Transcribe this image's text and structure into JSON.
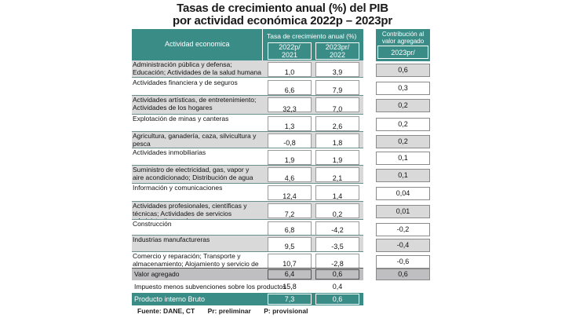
{
  "title_line1": "Tasas de crecimiento anual (%) del PIB",
  "title_line2": "por actividad económica 2022p – 2023pr",
  "header": {
    "activity": "Actividad economica",
    "growth": "Tasa de crecimiento anual (%)",
    "col1": "2022p/ 2021",
    "col2": "2023pr/ 2022",
    "contrib": "Contribución al valor agregado",
    "contrib_year": "2023pr/"
  },
  "rows": [
    {
      "label": "Administración pública y defensa; Educación; Actividades de la salud humana",
      "v1": "1,0",
      "v2": "3,9",
      "c": "0,6"
    },
    {
      "label": "Actividades financiera y de seguros",
      "v1": "6,6",
      "v2": "7,9",
      "c": "0,3"
    },
    {
      "label": "Actividades artísticas, de entretenimiento; Actividades de los hogares",
      "v1": "32,3",
      "v2": "7,0",
      "c": "0,2"
    },
    {
      "label": "Explotación de minas y canteras",
      "v1": "1,3",
      "v2": "2,6",
      "c": "0,2"
    },
    {
      "label": "Agricultura, ganadería, caza, silvicultura y pesca",
      "v1": "-0,8",
      "v2": "1,8",
      "c": "0,2"
    },
    {
      "label": "Actividades inmobiliarias",
      "v1": "1,9",
      "v2": "1,9",
      "c": "0,1"
    },
    {
      "label": "Suministro de electricidad, gas, vapor y aire acondicionado; Distribución de agua",
      "v1": "4,6",
      "v2": "2,1",
      "c": "0,1"
    },
    {
      "label": "Información y comunicaciones",
      "v1": "12,4",
      "v2": "1,4",
      "c": "0,04"
    },
    {
      "label": "Actividades profesionales, científicas y técnicas; Actividades de servicios administrativos y de apoyo",
      "v1": "7,2",
      "v2": "0,2",
      "c": "0,01"
    },
    {
      "label": "Construcción",
      "v1": "6,8",
      "v2": "-4,2",
      "c": "-0,2"
    },
    {
      "label": "Industrias manufactureras",
      "v1": "9,5",
      "v2": "-3,5",
      "c": "-0,4"
    },
    {
      "label": "Comercio y reparación; Transporte y almacenamiento; Alojamiento y servicio de comida",
      "v1": "10,7",
      "v2": "-2,8",
      "c": "-0,6"
    }
  ],
  "valor_agregado": {
    "label": "Valor agregado",
    "v1": "6,4",
    "v2": "0,6",
    "c": "0,6"
  },
  "impuestos": {
    "label": "Impuesto menos subvenciones sobre los productos",
    "v1": "15,8",
    "v2": "0,4"
  },
  "pib": {
    "label": "Producto interno Bruto",
    "v1": "7,3",
    "v2": "0,6"
  },
  "footer": {
    "source": "Fuente: DANE, CT",
    "pr": "Pr: preliminar",
    "p": "P: provisional"
  }
}
